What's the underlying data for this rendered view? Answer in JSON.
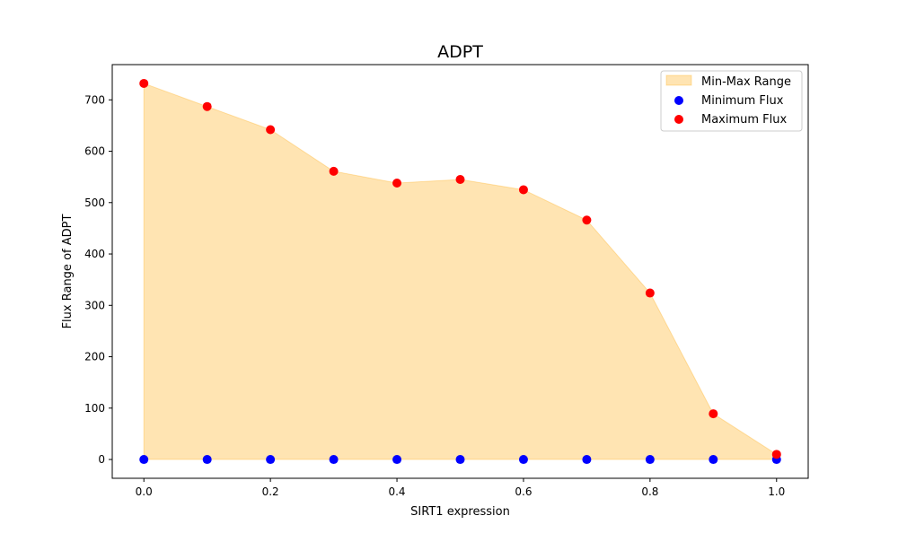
{
  "chart_data": {
    "type": "area",
    "title": "ADPT",
    "xlabel": "SIRT1 expression",
    "ylabel": "Flux Range of ADPT",
    "x": [
      0.0,
      0.1,
      0.2,
      0.3,
      0.4,
      0.5,
      0.6,
      0.7,
      0.8,
      0.9,
      1.0
    ],
    "xlim": [
      -0.05,
      1.05
    ],
    "ylim": [
      -36.6,
      768.6
    ],
    "x_ticks": [
      "0.0",
      "0.2",
      "0.4",
      "0.6",
      "0.8",
      "1.0"
    ],
    "y_ticks": [
      "0",
      "100",
      "200",
      "300",
      "400",
      "500",
      "600",
      "700"
    ],
    "series": [
      {
        "name": "Min-Max Range",
        "kind": "fill_between",
        "color": "#ffa500",
        "lower": [
          0,
          0,
          0,
          0,
          0,
          0,
          0,
          0,
          0,
          0,
          0
        ],
        "upper": [
          732,
          687,
          642,
          561,
          538,
          545,
          525,
          466,
          324,
          89,
          10
        ]
      },
      {
        "name": "Minimum Flux",
        "kind": "scatter",
        "color": "#0000ff",
        "values": [
          0,
          0,
          0,
          0,
          0,
          0,
          0,
          0,
          0,
          0,
          0
        ]
      },
      {
        "name": "Maximum Flux",
        "kind": "scatter",
        "color": "#ff0000",
        "values": [
          732,
          687,
          642,
          561,
          538,
          545,
          525,
          466,
          324,
          89,
          10
        ]
      }
    ],
    "legend": {
      "placement": "top-right",
      "entries": [
        "Min-Max Range",
        "Minimum Flux",
        "Maximum Flux"
      ]
    },
    "grid": false
  }
}
